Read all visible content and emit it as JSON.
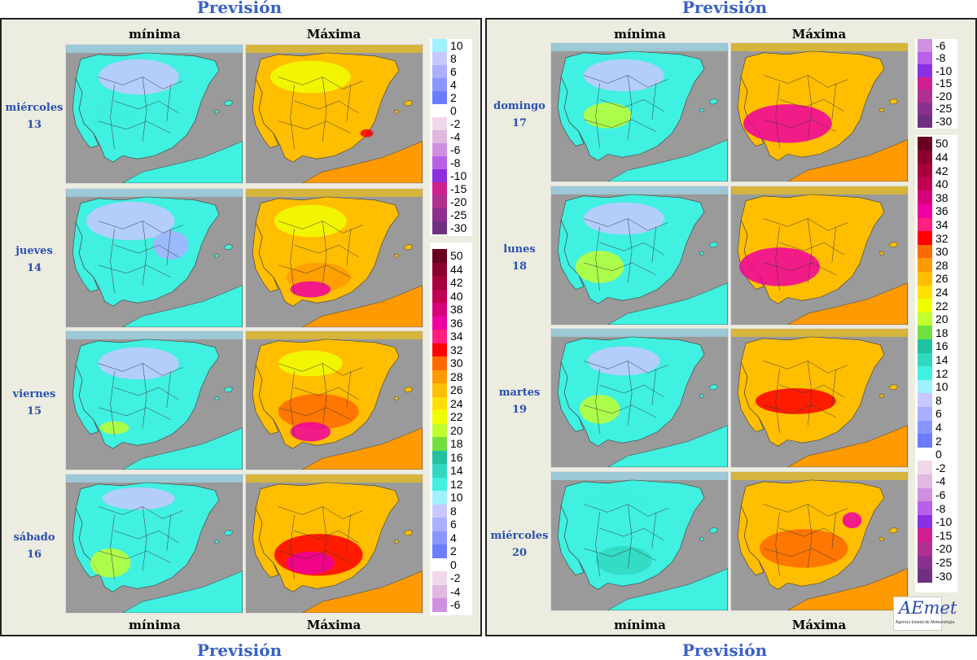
{
  "header": {
    "left": "Previsión",
    "right": "Previsión"
  },
  "footer": {
    "left": "Previsión",
    "right": "Previsión"
  },
  "columns": {
    "min": "mínima",
    "max": "Máxima"
  },
  "left_days": [
    {
      "name": "miércoles",
      "num": "13"
    },
    {
      "name": "jueves",
      "num": "14"
    },
    {
      "name": "viernes",
      "num": "15"
    },
    {
      "name": "sábado",
      "num": "16"
    }
  ],
  "right_days": [
    {
      "name": "domingo",
      "num": "17"
    },
    {
      "name": "lunes",
      "num": "18"
    },
    {
      "name": "martes",
      "num": "19"
    },
    {
      "name": "miércoles",
      "num": "20"
    }
  ],
  "left_legend_top": [
    "10",
    "8",
    "6",
    "4",
    "2",
    "0",
    "-2",
    "-4",
    "-6",
    "-8",
    "-10",
    "-15",
    "-20",
    "-25",
    "-30"
  ],
  "left_legend_bottom": [
    "50",
    "44",
    "42",
    "40",
    "38",
    "36",
    "34",
    "32",
    "30",
    "28",
    "26",
    "24",
    "22",
    "20",
    "18",
    "16",
    "14",
    "12",
    "10",
    "8",
    "6",
    "4",
    "2",
    "0",
    "-2",
    "-4",
    "-6"
  ],
  "right_legend_top": [
    "-6",
    "-8",
    "-10",
    "-15",
    "-20",
    "-25",
    "-30"
  ],
  "right_legend_bottom": [
    "50",
    "44",
    "42",
    "40",
    "38",
    "36",
    "34",
    "32",
    "30",
    "28",
    "26",
    "24",
    "22",
    "20",
    "18",
    "16",
    "14",
    "12",
    "10",
    "8",
    "6",
    "4",
    "2",
    "0",
    "-2",
    "-4",
    "-6",
    "-8",
    "-10",
    "-15",
    "-20",
    "-25",
    "-30"
  ],
  "scale_colors": {
    "50": "#6a0020",
    "44": "#8c0030",
    "42": "#a8003c",
    "40": "#c00050",
    "38": "#d8007a",
    "36": "#f000a0",
    "34": "#ff2080",
    "32": "#ff0000",
    "30": "#ff6a00",
    "28": "#ff9a00",
    "26": "#ffbe00",
    "24": "#ffe000",
    "22": "#f0ff00",
    "20": "#c0ff30",
    "18": "#70e040",
    "16": "#20c0a0",
    "14": "#30d8c0",
    "12": "#40f0e0",
    "10": "#a0f0ff",
    "8": "#c8c8ff",
    "6": "#aab0ff",
    "4": "#8a96ff",
    "2": "#6c7cff",
    "0": "#ffffff",
    "-2": "#f0d8e8",
    "-4": "#e0b8e0",
    "-6": "#d090e0",
    "-8": "#b860e8",
    "-10": "#8a30e0",
    "-15": "#d02090",
    "-20": "#b03090",
    "-25": "#8c3090",
    "-30": "#703080"
  },
  "logo": {
    "text": "AEmet",
    "subtitle": "Agencia Estatal de Meteorología"
  }
}
